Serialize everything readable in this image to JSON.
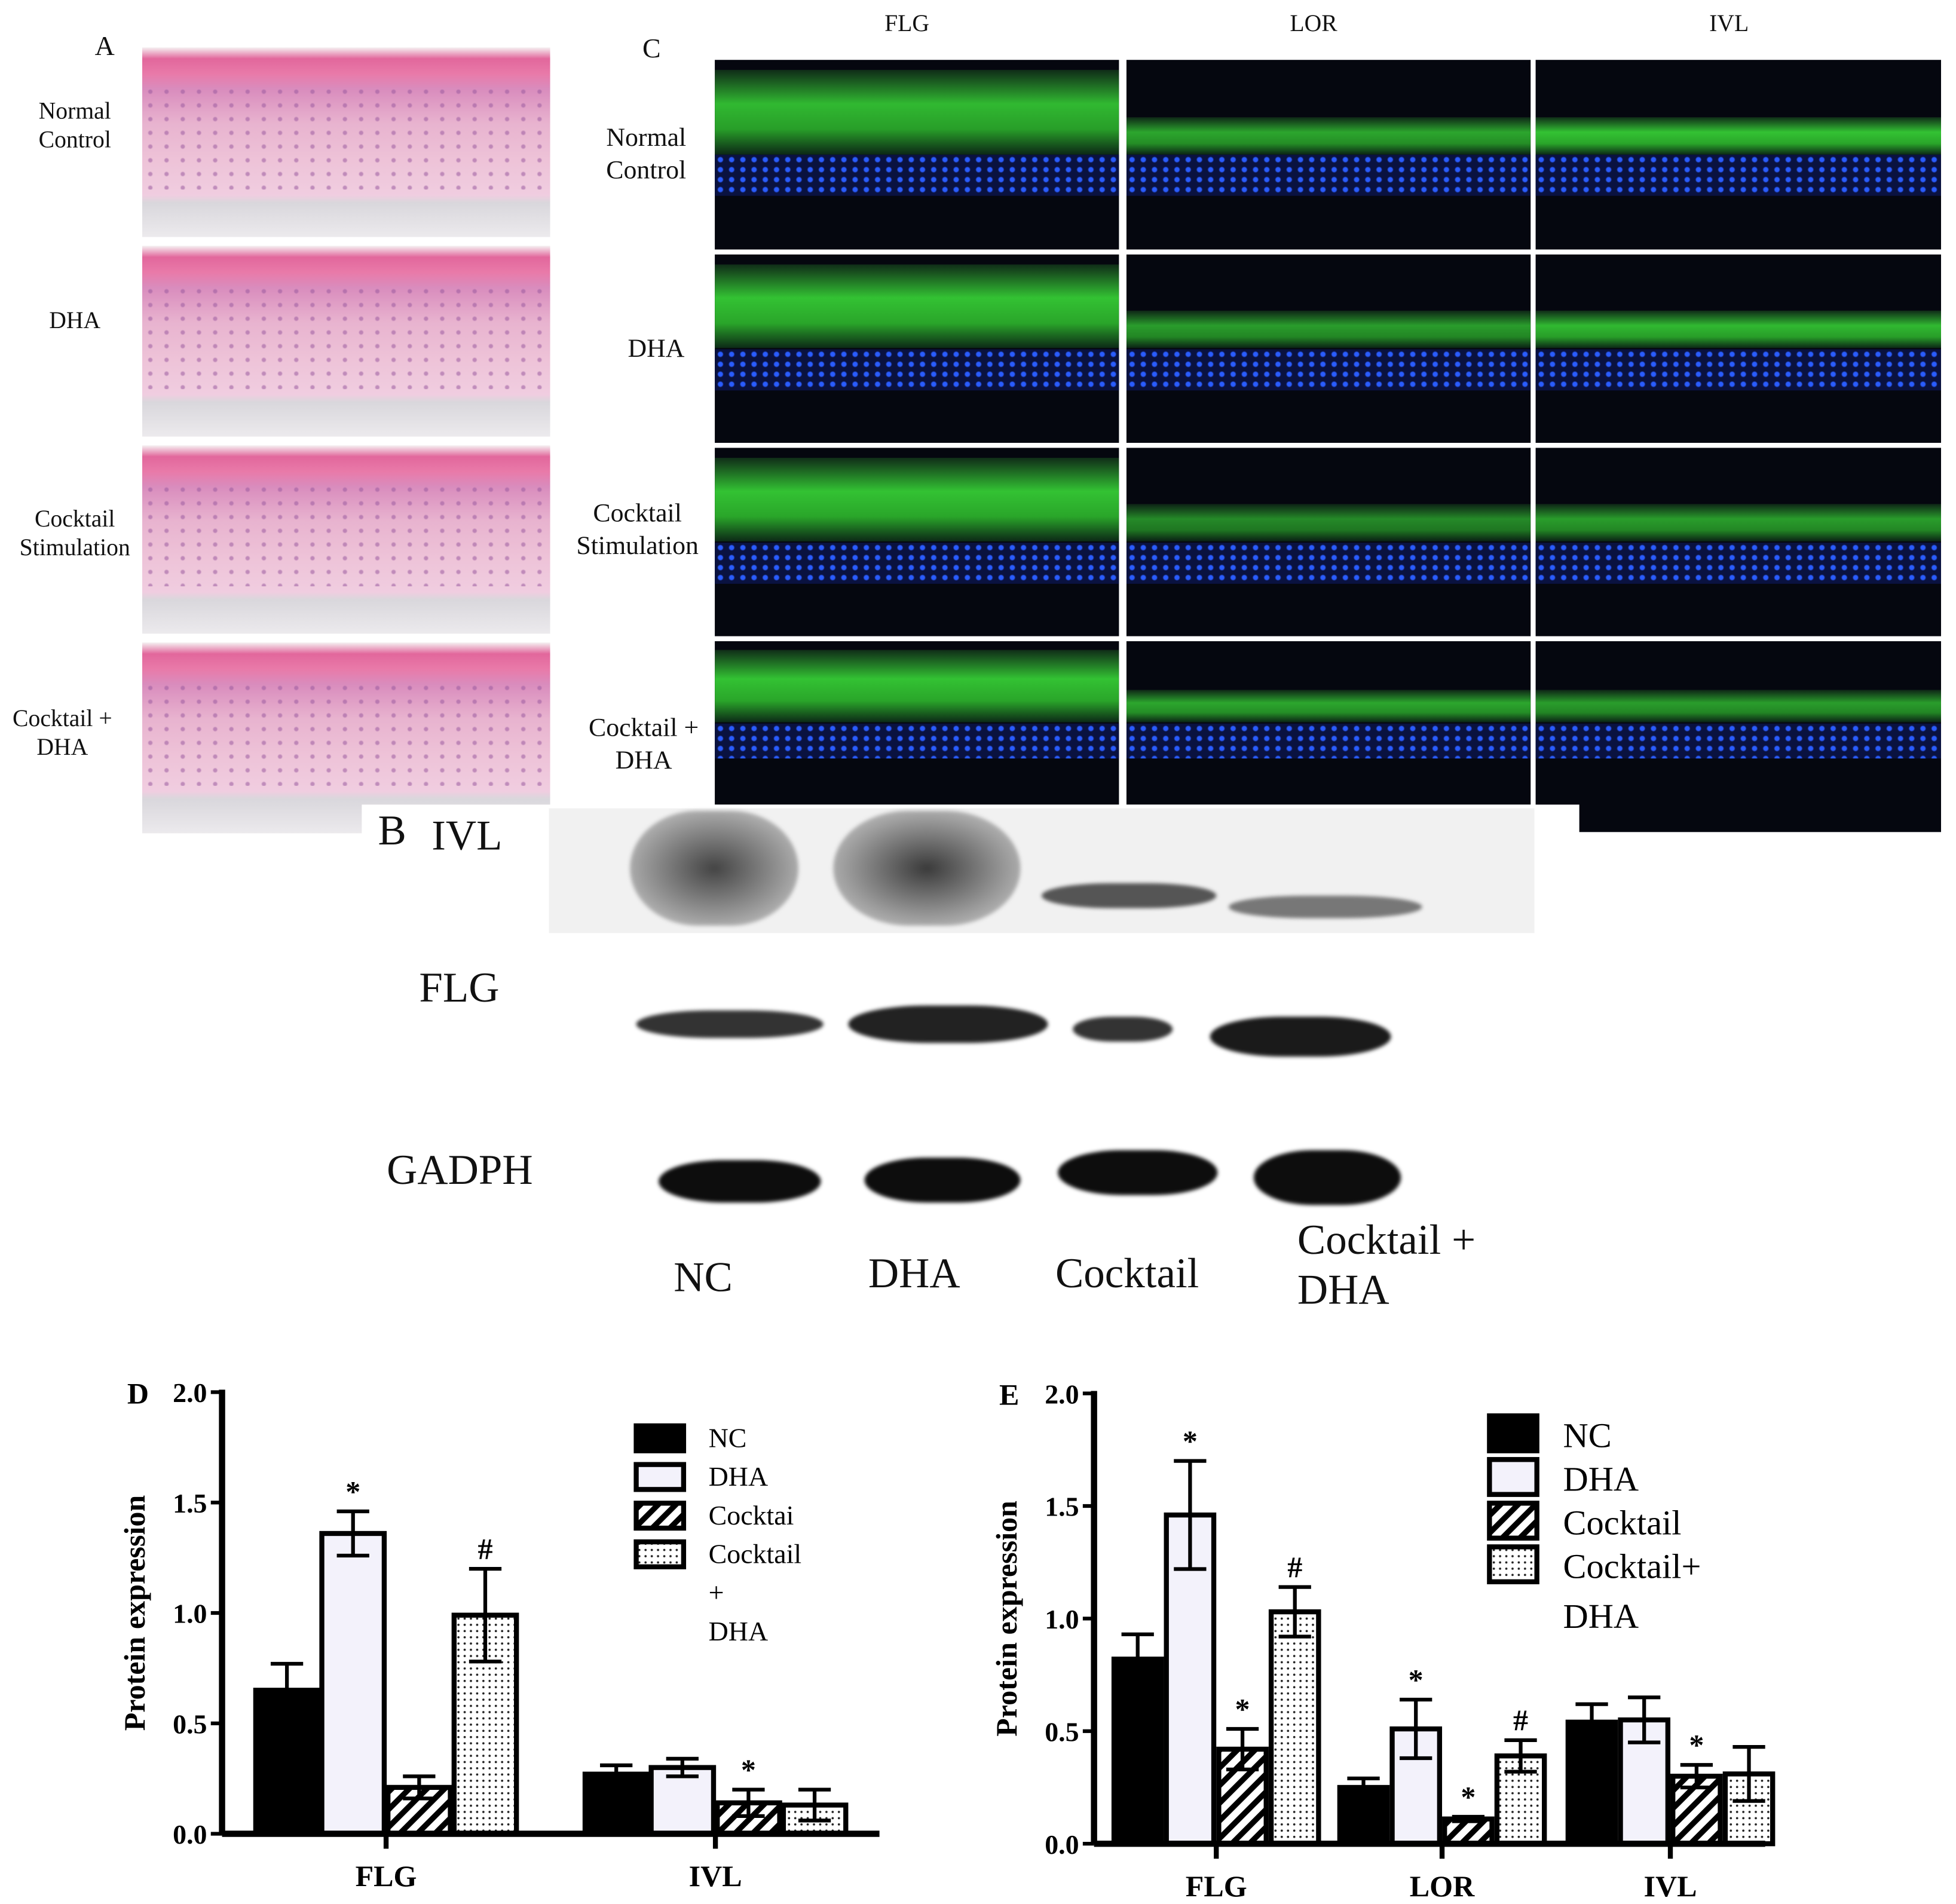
{
  "panel_a": {
    "letter": "A",
    "rows": [
      "Normal\nControl",
      "DHA",
      "Cocktail\nStimulation",
      "Cocktail +\nDHA"
    ]
  },
  "panel_c": {
    "letter": "C",
    "columns": [
      "FLG",
      "LOR",
      "IVL"
    ],
    "rows": [
      "Normal\nControl",
      "DHA",
      "Cocktail\nStimulation",
      "Cocktail +\nDHA"
    ]
  },
  "panel_b": {
    "letter": "B",
    "proteins": [
      "IVL",
      "FLG",
      "GADPH"
    ],
    "lanes": [
      "NC",
      "DHA",
      "Cocktail",
      "Cocktail +\nDHA"
    ]
  },
  "chart_data": [
    {
      "panel": "D",
      "type": "bar",
      "ylabel": "Protein expression",
      "ylim": [
        0,
        2.0
      ],
      "yticks": [
        "0.0",
        "0.5",
        "1.0",
        "1.5",
        "2.0"
      ],
      "categories": [
        "FLG",
        "IVL"
      ],
      "legend_position": "top-right",
      "series": [
        {
          "name": "NC",
          "fill": "#000000",
          "values": [
            0.65,
            0.27
          ],
          "errors": [
            0.12,
            0.04
          ],
          "marks": [
            "",
            ""
          ]
        },
        {
          "name": "DHA",
          "fill": "#f3f2fb",
          "values": [
            1.36,
            0.3
          ],
          "errors": [
            0.1,
            0.04
          ],
          "marks": [
            "*",
            ""
          ]
        },
        {
          "name": "Cocktai",
          "fill": "hatch",
          "values": [
            0.21,
            0.14
          ],
          "errors": [
            0.05,
            0.06
          ],
          "marks": [
            "",
            "*"
          ]
        },
        {
          "name": "Cocktail\n+\nDHA",
          "fill": "dots",
          "values": [
            0.99,
            0.13
          ],
          "errors": [
            0.21,
            0.07
          ],
          "marks": [
            "#",
            ""
          ]
        }
      ]
    },
    {
      "panel": "E",
      "type": "bar",
      "ylabel": "Protein expression",
      "ylim": [
        0,
        2.0
      ],
      "yticks": [
        "0.0",
        "0.5",
        "1.0",
        "1.5",
        "2.0"
      ],
      "categories": [
        "FLG",
        "LOR",
        "IVL"
      ],
      "legend_position": "top-right",
      "series": [
        {
          "name": "NC",
          "fill": "#000000",
          "values": [
            0.82,
            0.25,
            0.54
          ],
          "errors": [
            0.11,
            0.04,
            0.08
          ],
          "marks": [
            "",
            "",
            ""
          ]
        },
        {
          "name": "DHA",
          "fill": "#f3f2fb",
          "values": [
            1.46,
            0.51,
            0.55
          ],
          "errors": [
            0.24,
            0.13,
            0.1
          ],
          "marks": [
            "*",
            "*",
            ""
          ]
        },
        {
          "name": "Cocktail",
          "fill": "hatch",
          "values": [
            0.42,
            0.11,
            0.3
          ],
          "errors": [
            0.09,
            0.01,
            0.05
          ],
          "marks": [
            "*",
            "*",
            "*"
          ]
        },
        {
          "name": "Cocktail+\n  DHA",
          "fill": "dots",
          "values": [
            1.03,
            0.39,
            0.31
          ],
          "errors": [
            0.11,
            0.07,
            0.12
          ],
          "marks": [
            "#",
            "#",
            ""
          ]
        }
      ]
    }
  ]
}
